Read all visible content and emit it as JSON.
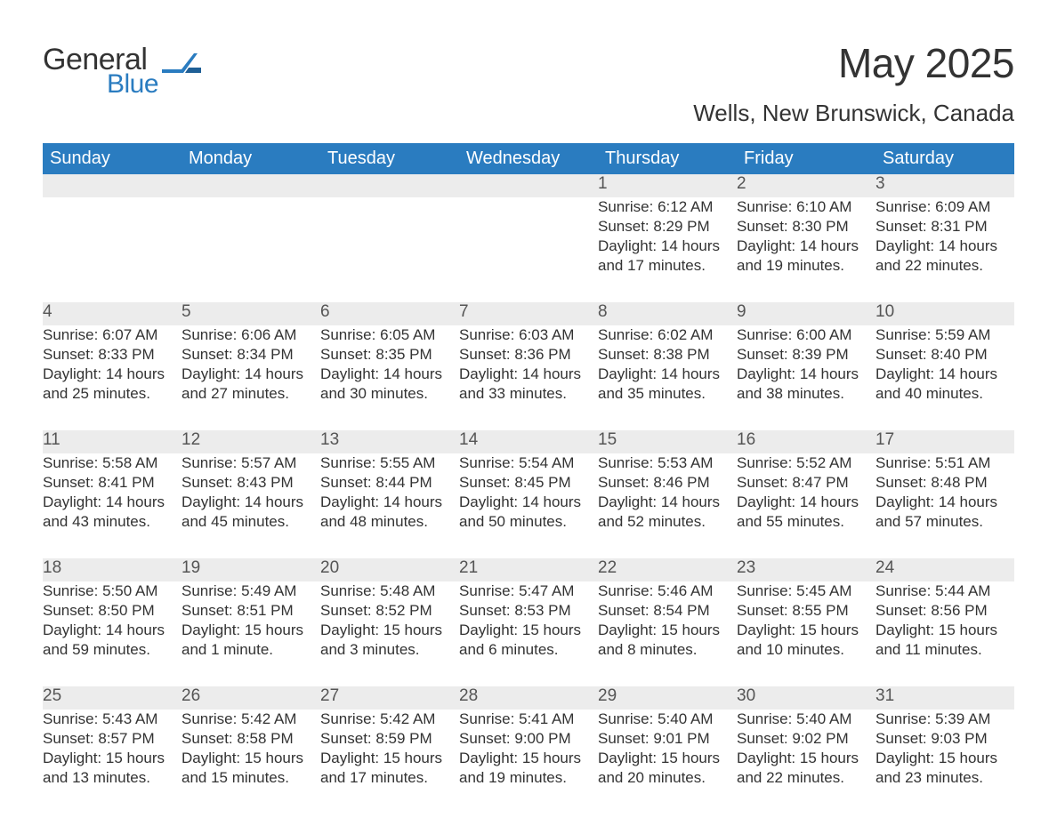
{
  "brand": {
    "general": "General",
    "blue": "Blue"
  },
  "title": "May 2025",
  "subtitle": "Wells, New Brunswick, Canada",
  "colors": {
    "header_bg": "#2a7cc0",
    "header_fg": "#ffffff",
    "daynum_bg": "#ececec",
    "rule": "#2a7cc0",
    "text": "#333333",
    "logo_blue": "#2a7cc0",
    "page_bg": "#ffffff"
  },
  "font": {
    "family": "Arial",
    "title_size_pt": 34,
    "subtitle_size_pt": 20,
    "header_size_pt": 15,
    "body_size_pt": 13
  },
  "weekdays": [
    "Sunday",
    "Monday",
    "Tuesday",
    "Wednesday",
    "Thursday",
    "Friday",
    "Saturday"
  ],
  "weeks": [
    [
      null,
      null,
      null,
      null,
      {
        "n": "1",
        "sunrise": "6:12 AM",
        "sunset": "8:29 PM",
        "daylight": "14 hours and 17 minutes."
      },
      {
        "n": "2",
        "sunrise": "6:10 AM",
        "sunset": "8:30 PM",
        "daylight": "14 hours and 19 minutes."
      },
      {
        "n": "3",
        "sunrise": "6:09 AM",
        "sunset": "8:31 PM",
        "daylight": "14 hours and 22 minutes."
      }
    ],
    [
      {
        "n": "4",
        "sunrise": "6:07 AM",
        "sunset": "8:33 PM",
        "daylight": "14 hours and 25 minutes."
      },
      {
        "n": "5",
        "sunrise": "6:06 AM",
        "sunset": "8:34 PM",
        "daylight": "14 hours and 27 minutes."
      },
      {
        "n": "6",
        "sunrise": "6:05 AM",
        "sunset": "8:35 PM",
        "daylight": "14 hours and 30 minutes."
      },
      {
        "n": "7",
        "sunrise": "6:03 AM",
        "sunset": "8:36 PM",
        "daylight": "14 hours and 33 minutes."
      },
      {
        "n": "8",
        "sunrise": "6:02 AM",
        "sunset": "8:38 PM",
        "daylight": "14 hours and 35 minutes."
      },
      {
        "n": "9",
        "sunrise": "6:00 AM",
        "sunset": "8:39 PM",
        "daylight": "14 hours and 38 minutes."
      },
      {
        "n": "10",
        "sunrise": "5:59 AM",
        "sunset": "8:40 PM",
        "daylight": "14 hours and 40 minutes."
      }
    ],
    [
      {
        "n": "11",
        "sunrise": "5:58 AM",
        "sunset": "8:41 PM",
        "daylight": "14 hours and 43 minutes."
      },
      {
        "n": "12",
        "sunrise": "5:57 AM",
        "sunset": "8:43 PM",
        "daylight": "14 hours and 45 minutes."
      },
      {
        "n": "13",
        "sunrise": "5:55 AM",
        "sunset": "8:44 PM",
        "daylight": "14 hours and 48 minutes."
      },
      {
        "n": "14",
        "sunrise": "5:54 AM",
        "sunset": "8:45 PM",
        "daylight": "14 hours and 50 minutes."
      },
      {
        "n": "15",
        "sunrise": "5:53 AM",
        "sunset": "8:46 PM",
        "daylight": "14 hours and 52 minutes."
      },
      {
        "n": "16",
        "sunrise": "5:52 AM",
        "sunset": "8:47 PM",
        "daylight": "14 hours and 55 minutes."
      },
      {
        "n": "17",
        "sunrise": "5:51 AM",
        "sunset": "8:48 PM",
        "daylight": "14 hours and 57 minutes."
      }
    ],
    [
      {
        "n": "18",
        "sunrise": "5:50 AM",
        "sunset": "8:50 PM",
        "daylight": "14 hours and 59 minutes."
      },
      {
        "n": "19",
        "sunrise": "5:49 AM",
        "sunset": "8:51 PM",
        "daylight": "15 hours and 1 minute."
      },
      {
        "n": "20",
        "sunrise": "5:48 AM",
        "sunset": "8:52 PM",
        "daylight": "15 hours and 3 minutes."
      },
      {
        "n": "21",
        "sunrise": "5:47 AM",
        "sunset": "8:53 PM",
        "daylight": "15 hours and 6 minutes."
      },
      {
        "n": "22",
        "sunrise": "5:46 AM",
        "sunset": "8:54 PM",
        "daylight": "15 hours and 8 minutes."
      },
      {
        "n": "23",
        "sunrise": "5:45 AM",
        "sunset": "8:55 PM",
        "daylight": "15 hours and 10 minutes."
      },
      {
        "n": "24",
        "sunrise": "5:44 AM",
        "sunset": "8:56 PM",
        "daylight": "15 hours and 11 minutes."
      }
    ],
    [
      {
        "n": "25",
        "sunrise": "5:43 AM",
        "sunset": "8:57 PM",
        "daylight": "15 hours and 13 minutes."
      },
      {
        "n": "26",
        "sunrise": "5:42 AM",
        "sunset": "8:58 PM",
        "daylight": "15 hours and 15 minutes."
      },
      {
        "n": "27",
        "sunrise": "5:42 AM",
        "sunset": "8:59 PM",
        "daylight": "15 hours and 17 minutes."
      },
      {
        "n": "28",
        "sunrise": "5:41 AM",
        "sunset": "9:00 PM",
        "daylight": "15 hours and 19 minutes."
      },
      {
        "n": "29",
        "sunrise": "5:40 AM",
        "sunset": "9:01 PM",
        "daylight": "15 hours and 20 minutes."
      },
      {
        "n": "30",
        "sunrise": "5:40 AM",
        "sunset": "9:02 PM",
        "daylight": "15 hours and 22 minutes."
      },
      {
        "n": "31",
        "sunrise": "5:39 AM",
        "sunset": "9:03 PM",
        "daylight": "15 hours and 23 minutes."
      }
    ]
  ],
  "labels": {
    "sunrise": "Sunrise: ",
    "sunset": "Sunset: ",
    "daylight": "Daylight: "
  }
}
